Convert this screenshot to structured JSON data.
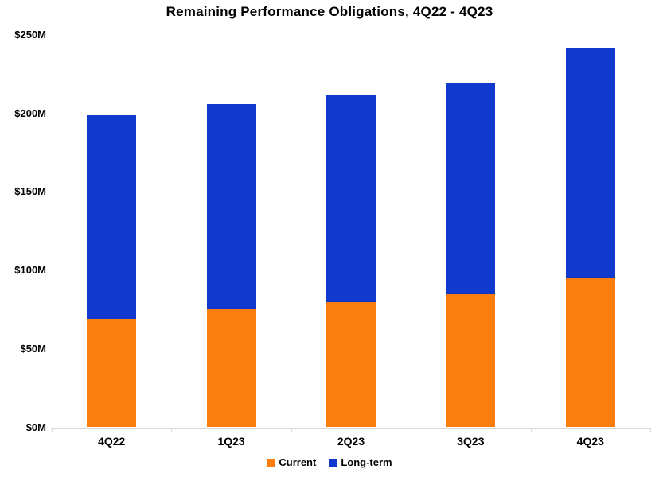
{
  "chart_data": {
    "type": "bar",
    "stacked": true,
    "title": "Remaining Performance Obligations, 4Q22 - 4Q23",
    "categories": [
      "4Q22",
      "1Q23",
      "2Q23",
      "3Q23",
      "4Q23"
    ],
    "series": [
      {
        "name": "Current",
        "color": "#FB7D0D",
        "values": [
          69,
          75,
          80,
          85,
          95
        ]
      },
      {
        "name": "Long-term",
        "color": "#1239CE",
        "values": [
          130,
          131,
          132,
          134,
          147
        ]
      }
    ],
    "y_axis": {
      "tick_labels": [
        "$0M",
        "$50M",
        "$100M",
        "$150M",
        "$200M",
        "$250M"
      ],
      "tick_values": [
        0,
        50,
        100,
        150,
        200,
        250
      ],
      "min": 0,
      "max": 250
    },
    "legend_position": "bottom",
    "gridlines": false,
    "axis_line_color": "#D9D9D9"
  }
}
